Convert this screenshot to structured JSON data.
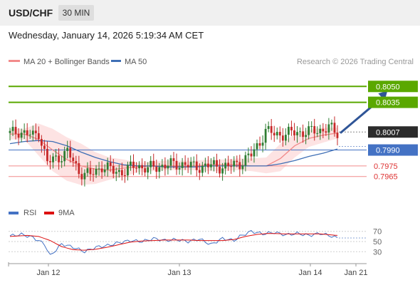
{
  "header": {
    "symbol": "USD/CHF",
    "timeframe": "30 MIN"
  },
  "datetime": "Wednesday, January 14, 2026 5:19:34 AM CET",
  "legend": {
    "ma20": "MA 20 + Bollinger Bands",
    "ma50": "MA 50",
    "credit": "Research © 2026 Trading Central",
    "rsi": "RSI",
    "rsi_ma": "9MA"
  },
  "colors": {
    "up": "#2e7d32",
    "down": "#c62828",
    "ma20": "#f28b8b",
    "ma50": "#3f6fb5",
    "bands": "#fde3e3",
    "target": "#5aa800",
    "pivot": "#4472c4",
    "support": "#f28b8b",
    "current": "#2b2b2b",
    "arrow": "#2f5597",
    "rsi": "#4472c4",
    "rsi_ma": "#dd1111"
  },
  "chart_data": [
    {
      "type": "candlestick",
      "x_labels": [
        "Jan 12",
        "Jan 13",
        "Jan 14",
        "Jan 21"
      ],
      "ylim": [
        0.7946,
        0.8067
      ],
      "current_price": "0.8007",
      "levels": [
        {
          "value": 0.805,
          "label": "0.8050",
          "kind": "resistance"
        },
        {
          "value": 0.8035,
          "label": "0.8035",
          "kind": "resistance"
        },
        {
          "value": 0.799,
          "label": "0.7990",
          "kind": "pivot"
        },
        {
          "value": 0.7975,
          "label": "0.7975",
          "kind": "support"
        },
        {
          "value": 0.7965,
          "label": "0.7965",
          "kind": "support"
        }
      ],
      "close_anchors": [
        [
          0,
          0.8005
        ],
        [
          3,
          0.8008
        ],
        [
          6,
          0.8005
        ],
        [
          8,
          0.8003
        ],
        [
          10,
          0.8007
        ],
        [
          13,
          0.7978
        ],
        [
          16,
          0.7982
        ],
        [
          20,
          0.7988
        ],
        [
          24,
          0.797
        ],
        [
          28,
          0.7966
        ],
        [
          32,
          0.7975
        ],
        [
          36,
          0.797
        ],
        [
          40,
          0.797
        ],
        [
          44,
          0.7976
        ],
        [
          48,
          0.7972
        ],
        [
          52,
          0.7975
        ],
        [
          56,
          0.7976
        ],
        [
          60,
          0.7977
        ],
        [
          64,
          0.7974
        ],
        [
          68,
          0.7975
        ],
        [
          72,
          0.7975
        ],
        [
          76,
          0.7974
        ],
        [
          80,
          0.7978
        ],
        [
          84,
          0.7985
        ],
        [
          87,
          0.7998
        ],
        [
          89,
          0.8008
        ],
        [
          92,
          0.8005
        ],
        [
          96,
          0.8005
        ],
        [
          100,
          0.8007
        ],
        [
          104,
          0.8007
        ],
        [
          108,
          0.8009
        ],
        [
          111,
          0.8011
        ],
        [
          113,
          0.8007
        ],
        [
          114,
          0.8006
        ]
      ],
      "ma20_y": [
        0.8005,
        0.8005,
        0.8,
        0.799,
        0.7981,
        0.7975,
        0.7972,
        0.7971,
        0.7973,
        0.7974,
        0.7975,
        0.7975,
        0.7975,
        0.7975,
        0.7976,
        0.7976,
        0.7976,
        0.7975,
        0.7975,
        0.7982,
        0.7994,
        0.8001,
        0.8004,
        0.8006
      ],
      "ma50_y": [
        0.7996,
        0.7998,
        0.7999,
        0.7998,
        0.7994,
        0.7988,
        0.7983,
        0.7979,
        0.7976,
        0.7975,
        0.7975,
        0.7974,
        0.7974,
        0.7974,
        0.7975,
        0.7975,
        0.7975,
        0.7975,
        0.7975,
        0.7977,
        0.798,
        0.7984,
        0.7987,
        0.7991
      ],
      "band_upper": [
        0.801,
        0.801,
        0.8015,
        0.801,
        0.8002,
        0.7996,
        0.7988,
        0.7983,
        0.7981,
        0.7978,
        0.7979,
        0.798,
        0.798,
        0.798,
        0.7981,
        0.7981,
        0.7982,
        0.7982,
        0.7983,
        0.7996,
        0.8005,
        0.8009,
        0.8011,
        0.8011
      ],
      "band_lower": [
        0.8,
        0.8,
        0.7985,
        0.797,
        0.7961,
        0.7957,
        0.7958,
        0.7962,
        0.7965,
        0.7969,
        0.797,
        0.7971,
        0.7971,
        0.7971,
        0.797,
        0.797,
        0.7971,
        0.797,
        0.7968,
        0.797,
        0.7983,
        0.7993,
        0.7997,
        0.8001
      ],
      "projection": {
        "from": [
          114,
          0.8006
        ],
        "to": [
          124,
          0.805
        ]
      }
    },
    {
      "type": "line",
      "title": "RSI",
      "ylim": [
        15,
        85
      ],
      "ticks": [
        70,
        50,
        30
      ],
      "rsi_anchors": [
        [
          0,
          61
        ],
        [
          4,
          64
        ],
        [
          8,
          58
        ],
        [
          12,
          45
        ],
        [
          14,
          22
        ],
        [
          18,
          45
        ],
        [
          22,
          39
        ],
        [
          26,
          30
        ],
        [
          30,
          39
        ],
        [
          34,
          42
        ],
        [
          38,
          48
        ],
        [
          42,
          52
        ],
        [
          46,
          50
        ],
        [
          50,
          56
        ],
        [
          54,
          52
        ],
        [
          58,
          54
        ],
        [
          62,
          50
        ],
        [
          66,
          55
        ],
        [
          70,
          44
        ],
        [
          74,
          56
        ],
        [
          78,
          52
        ],
        [
          80,
          60
        ],
        [
          84,
          70
        ],
        [
          88,
          65
        ],
        [
          92,
          68
        ],
        [
          96,
          63
        ],
        [
          100,
          66
        ],
        [
          104,
          62
        ],
        [
          108,
          66
        ],
        [
          111,
          62
        ],
        [
          114,
          57
        ]
      ],
      "ma9_anchors": [
        [
          0,
          60
        ],
        [
          6,
          62
        ],
        [
          10,
          60
        ],
        [
          14,
          52
        ],
        [
          18,
          40
        ],
        [
          22,
          34
        ],
        [
          26,
          33
        ],
        [
          30,
          35
        ],
        [
          34,
          39
        ],
        [
          38,
          44
        ],
        [
          42,
          49
        ],
        [
          46,
          51
        ],
        [
          50,
          52
        ],
        [
          54,
          53
        ],
        [
          58,
          53
        ],
        [
          62,
          53
        ],
        [
          66,
          52
        ],
        [
          70,
          52
        ],
        [
          74,
          52
        ],
        [
          78,
          54
        ],
        [
          82,
          60
        ],
        [
          86,
          64
        ],
        [
          90,
          66
        ],
        [
          96,
          65
        ],
        [
          102,
          65
        ],
        [
          108,
          65
        ],
        [
          114,
          62
        ]
      ]
    }
  ]
}
